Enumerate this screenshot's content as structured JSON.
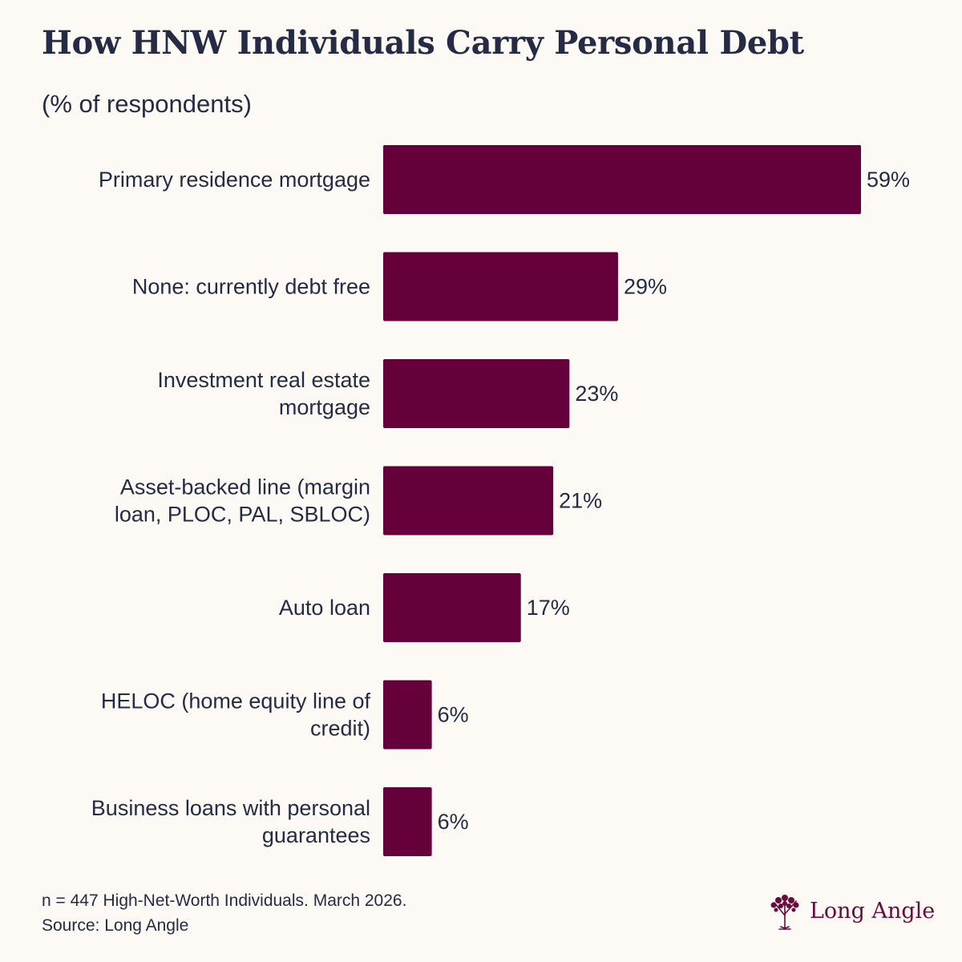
{
  "colors": {
    "bar": "#65003a",
    "text": "#252b45",
    "background": "#fdfaf5",
    "brand": "#6a0b3a"
  },
  "chart_data": {
    "type": "bar",
    "orientation": "horizontal",
    "title": "How HNW Individuals Carry Personal Debt",
    "subtitle": "(% of respondents)",
    "categories": [
      [
        "Primary residence mortgage"
      ],
      [
        "None: currently debt free"
      ],
      [
        "Investment real estate",
        "mortgage"
      ],
      [
        "Asset-backed line (margin",
        "loan, PLOC, PAL, SBLOC)"
      ],
      [
        "Auto loan"
      ],
      [
        "HELOC (home equity line of",
        "credit)"
      ],
      [
        "Business loans with personal",
        "guarantees"
      ]
    ],
    "values": [
      59,
      29,
      23,
      21,
      17,
      6,
      6
    ],
    "value_labels": [
      "59%",
      "29%",
      "23%",
      "21%",
      "17%",
      "6%",
      "6%"
    ],
    "xlim": [
      0,
      59
    ],
    "grid": false,
    "legend": "none"
  },
  "footer": {
    "note": "n = 447 High-Net-Worth Individuals. March 2026.",
    "source": "Source: Long Angle"
  },
  "brand": {
    "name": "Long Angle",
    "icon": "tree-icon"
  }
}
